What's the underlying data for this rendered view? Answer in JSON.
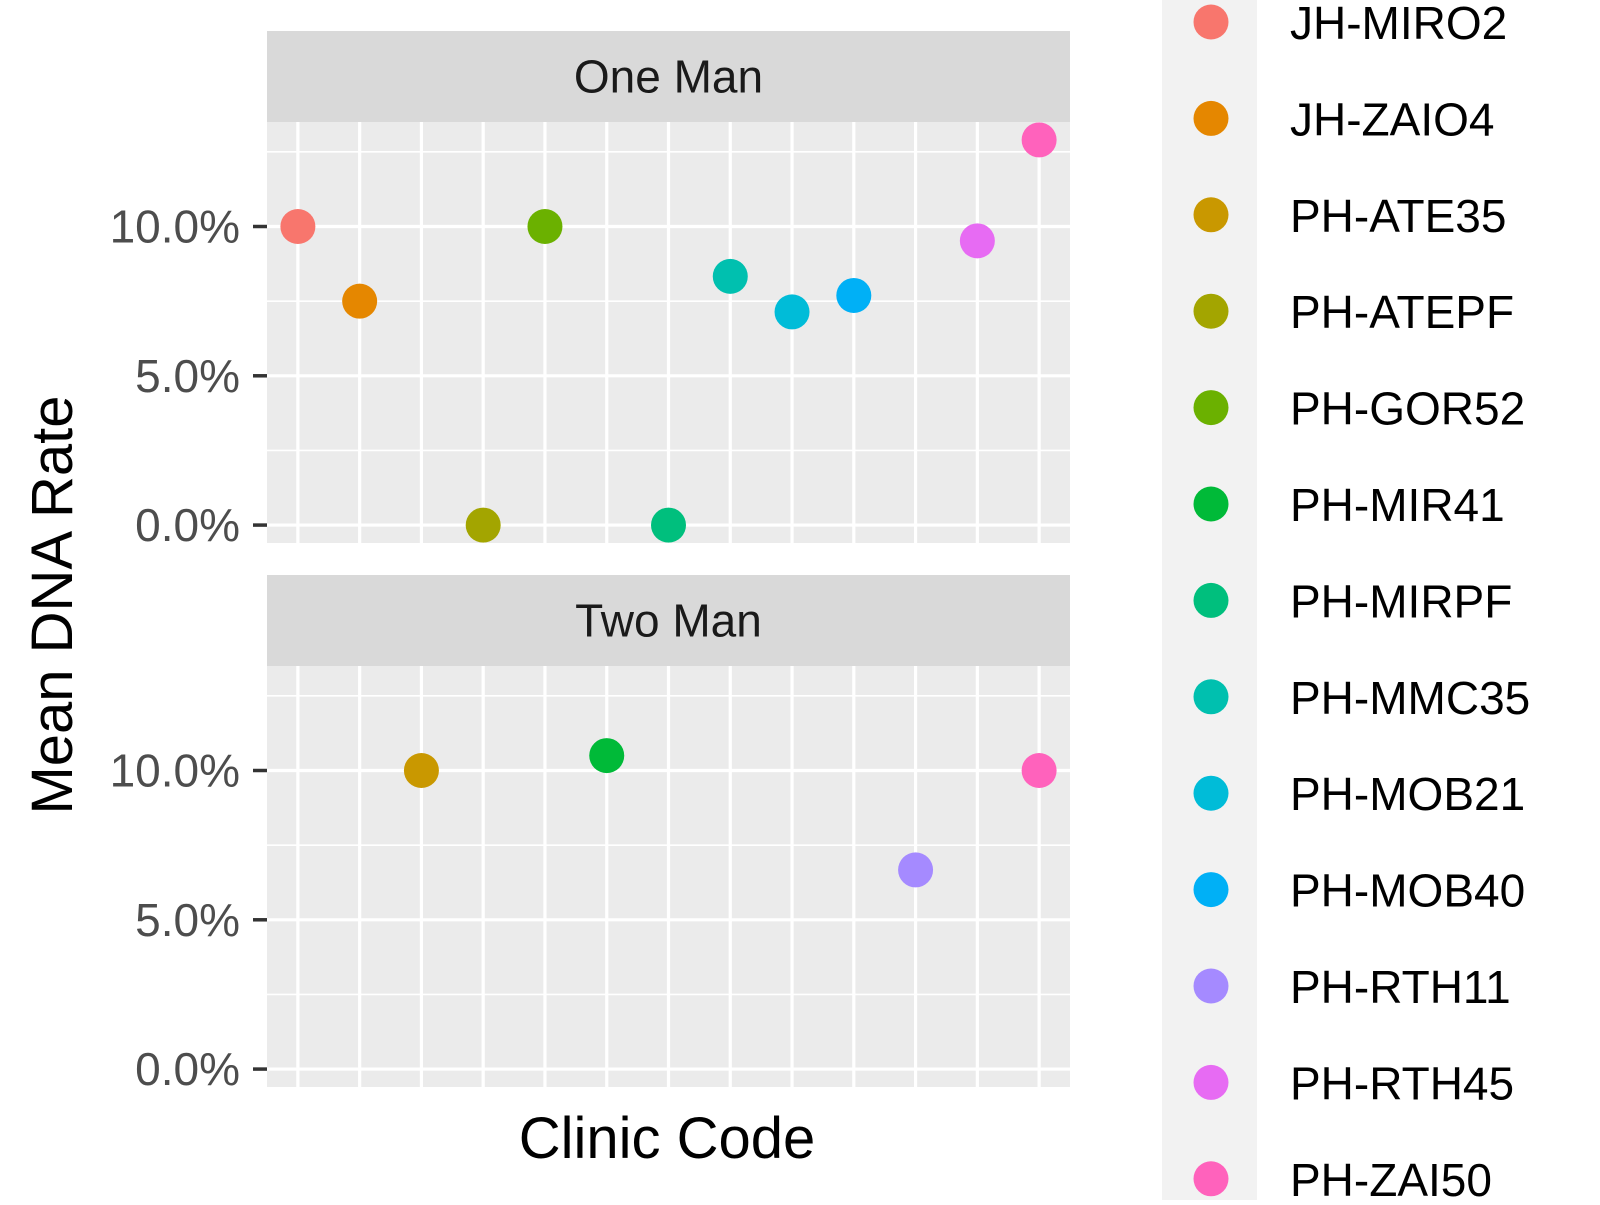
{
  "chart_data": {
    "type": "scatter",
    "xlabel": "Clinic Code",
    "ylabel": "Mean DNA Rate",
    "ylim": [
      -0.6,
      13.5
    ],
    "y_ticks": [
      0,
      5,
      10
    ],
    "y_tick_labels": [
      "0.0%",
      "5.0%",
      "10.0%"
    ],
    "grid": true,
    "legend_position": "right",
    "categories": [
      "JH-MIRO2",
      "JH-ZAIO4",
      "PH-ATE35",
      "PH-ATEPF",
      "PH-GOR52",
      "PH-MIR41",
      "PH-MIRPF",
      "PH-MMC35",
      "PH-MOB21",
      "PH-MOB40",
      "PH-RTH11",
      "PH-RTH45",
      "PH-ZAI50"
    ],
    "colors": [
      "#F8766D",
      "#E58700",
      "#C99800",
      "#A3A500",
      "#6BB100",
      "#00BA38",
      "#00BF7D",
      "#00C0AF",
      "#00BCD8",
      "#00B0F6",
      "#A58AFF",
      "#E76BF3",
      "#FF62BC"
    ],
    "facets": [
      {
        "label": "One Man",
        "points": [
          {
            "clinic": "JH-MIRO2",
            "value": 10.0
          },
          {
            "clinic": "JH-ZAIO4",
            "value": 7.5
          },
          {
            "clinic": "PH-ATEPF",
            "value": 0.0
          },
          {
            "clinic": "PH-GOR52",
            "value": 10.0
          },
          {
            "clinic": "PH-MIRPF",
            "value": 0.0
          },
          {
            "clinic": "PH-MMC35",
            "value": 8.33
          },
          {
            "clinic": "PH-MOB21",
            "value": 7.14
          },
          {
            "clinic": "PH-MOB40",
            "value": 7.69
          },
          {
            "clinic": "PH-RTH45",
            "value": 9.52
          },
          {
            "clinic": "PH-ZAI50",
            "value": 12.9
          }
        ]
      },
      {
        "label": "Two Man",
        "points": [
          {
            "clinic": "PH-ATE35",
            "value": 10.0
          },
          {
            "clinic": "PH-MIR41",
            "value": 10.5
          },
          {
            "clinic": "PH-RTH11",
            "value": 6.67
          },
          {
            "clinic": "PH-ZAI50",
            "value": 10.0
          }
        ]
      }
    ]
  }
}
